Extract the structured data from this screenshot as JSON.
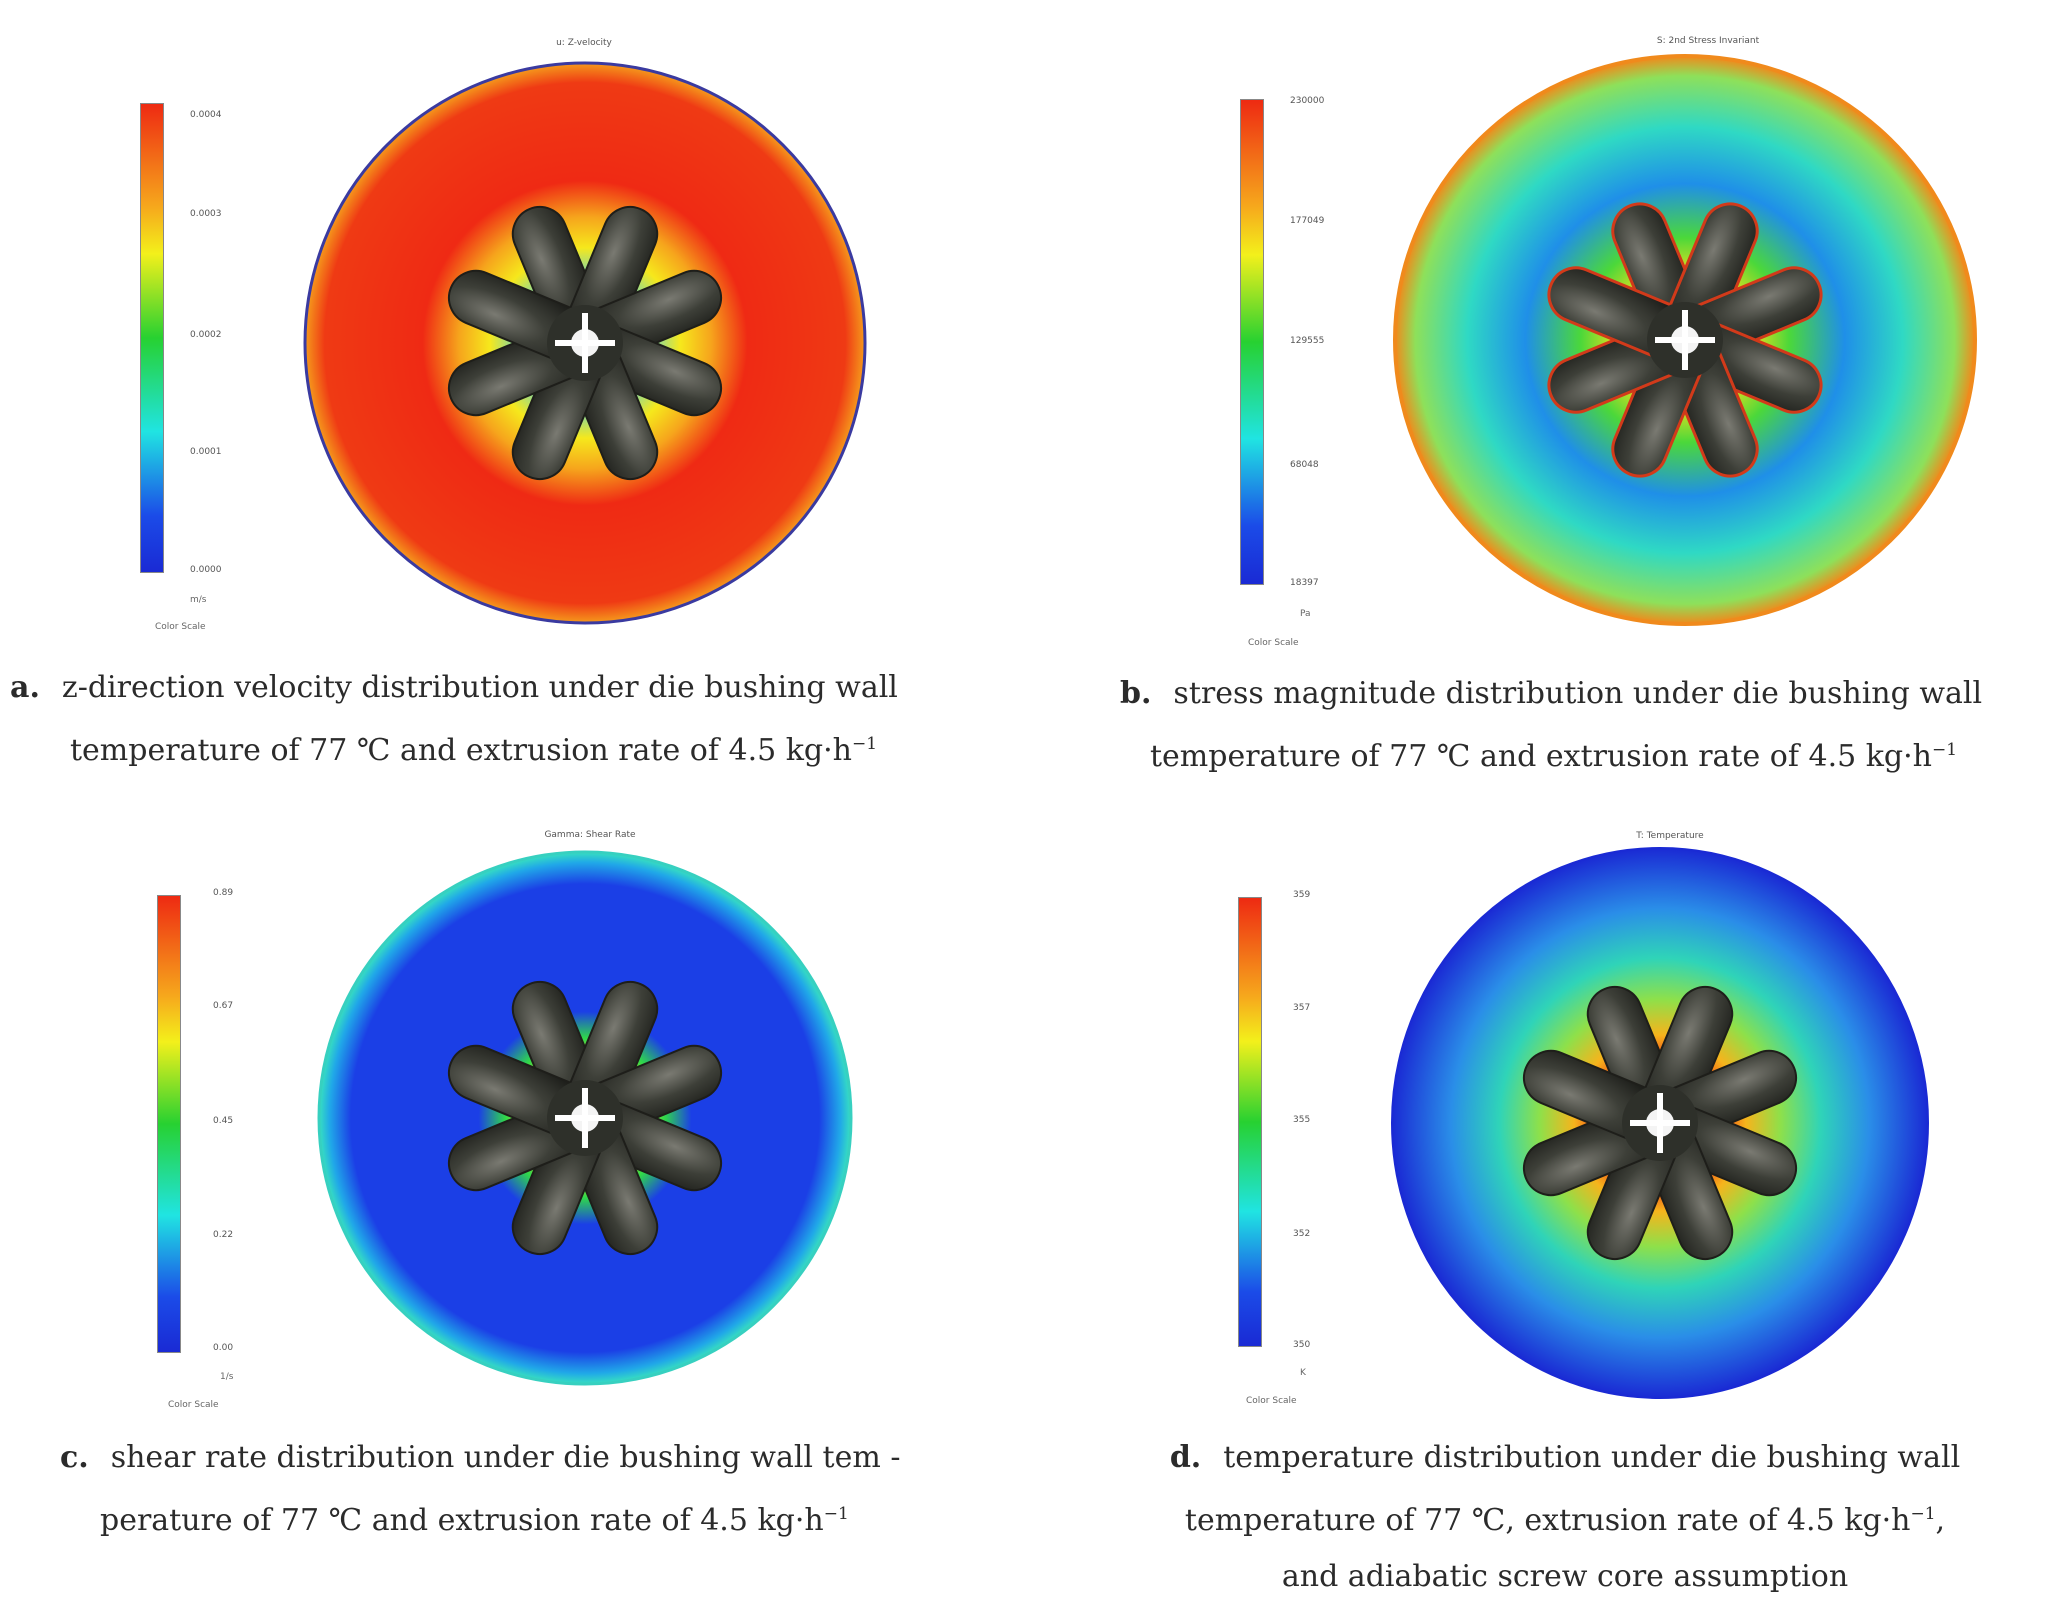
{
  "panels": {
    "a": {
      "plot_title": "u: Z-velocity",
      "ticks": [
        "0.0004",
        "0.0003",
        "0.0002",
        "0.0001",
        "0.0000"
      ],
      "unit": "m/s",
      "color_scale": "Color Scale",
      "caption_letter": "a.",
      "caption_line1": "z-direction velocity distribution under die bushing wall",
      "caption_line2": "temperature of 77 ℃ and extrusion rate of 4.5 kg·h",
      "caption_sup": "−1",
      "colors": {
        "outer": "#ef2a14",
        "inner": "#f6a51c",
        "edge": "#3a3aa0"
      }
    },
    "b": {
      "plot_title": "S: 2nd Stress Invariant",
      "ticks": [
        "230000",
        "177049",
        "129555",
        "68048",
        "18397"
      ],
      "unit": "Pa",
      "color_scale": "Color Scale",
      "caption_letter": "b.",
      "caption_line1": "stress magnitude distribution under die bushing wall",
      "caption_line2": "temperature of 77 ℃ and extrusion rate of 4.5 kg·h",
      "caption_sup": "−1",
      "colors": {
        "outer": "#2fd9c4",
        "inner": "#4bd83a",
        "edge": "#f08a1c"
      }
    },
    "c": {
      "plot_title": "Gamma: Shear Rate",
      "ticks": [
        "0.89",
        "0.67",
        "0.45",
        "0.22",
        "0.00"
      ],
      "unit": "1/s",
      "color_scale": "Color Scale",
      "caption_letter": "c.",
      "caption_line1": "shear rate distribution under die bushing wall tem -",
      "caption_line2": "perature of 77 ℃ and extrusion rate of 4.5  kg·h",
      "caption_sup": "−1",
      "colors": {
        "outer": "#1b3fe6",
        "inner": "#2fd84a",
        "edge": "#37d0c0"
      }
    },
    "d": {
      "plot_title": "T: Temperature",
      "ticks": [
        "359",
        "357",
        "355",
        "352",
        "350"
      ],
      "unit": "K",
      "color_scale": "Color Scale",
      "caption_letter": "d.",
      "caption_line1": "temperature distribution under die bushing wall",
      "caption_line2": "temperature of 77 ℃, extrusion rate of 4.5 kg·h",
      "caption_sup": "−1",
      "caption_line2_end": ",",
      "caption_line3": "and adiabatic screw core assumption",
      "colors": {
        "outer": "#2a6fe8",
        "inner": "#f0b020",
        "edge": "#1a2ad4"
      }
    }
  }
}
